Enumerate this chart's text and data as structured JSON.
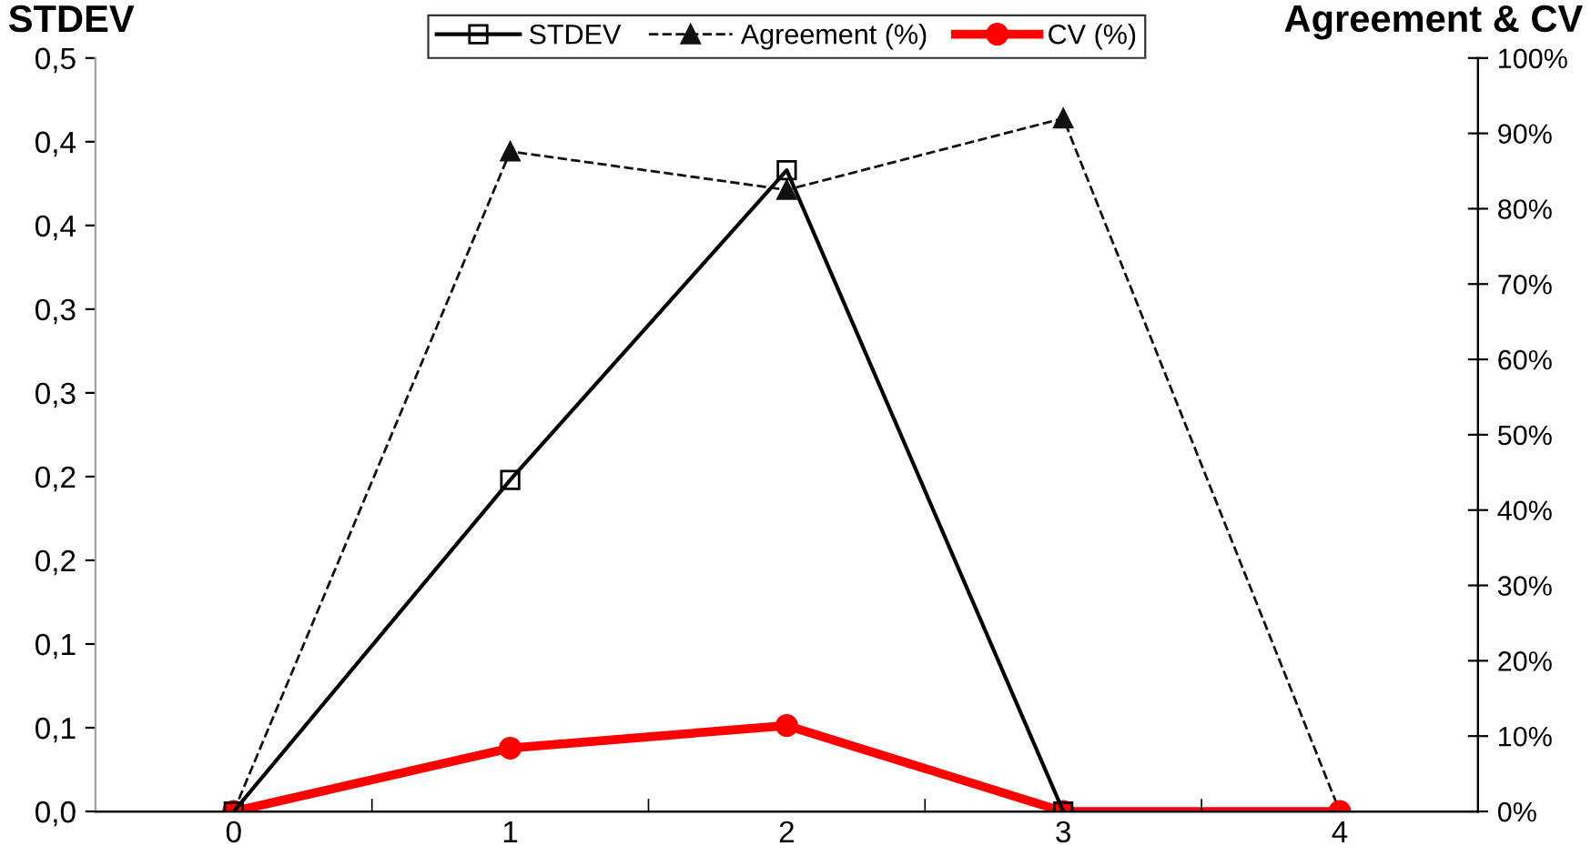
{
  "chart_data": {
    "type": "line",
    "ylabel": "STDEV",
    "y2label": "Agreement & CV",
    "categories": [
      "0",
      "1",
      "2",
      "3",
      "4"
    ],
    "series": [
      {
        "name": "STDEV",
        "color": "#000000",
        "values": [
          0,
          0.198,
          0.383,
          0,
          null
        ],
        "marker": "square",
        "line_style": "solid"
      },
      {
        "name": "Agreement (%)",
        "color": "#111111",
        "values": [
          0,
          87.6,
          82.5,
          92,
          0
        ],
        "marker": "triangle",
        "line_style": "dashed",
        "axis": "y2"
      },
      {
        "name": "CV (%)",
        "color": "#ff0000",
        "values": [
          0,
          8.4,
          11.4,
          0,
          0
        ],
        "marker": "circle",
        "line_style": "solid",
        "axis": "y2"
      }
    ],
    "ylim": [
      0,
      0.45
    ],
    "yticks": [
      {
        "value": 0,
        "label": "0,0"
      },
      {
        "value": 0.05,
        "label": "0,1"
      },
      {
        "value": 0.1,
        "label": "0,1"
      },
      {
        "value": 0.15,
        "label": "0,2"
      },
      {
        "value": 0.2,
        "label": "0,2"
      },
      {
        "value": 0.25,
        "label": "0,3"
      },
      {
        "value": 0.3,
        "label": "0,3"
      },
      {
        "value": 0.35,
        "label": "0,4"
      },
      {
        "value": 0.4,
        "label": "0,4"
      },
      {
        "value": 0.45,
        "label": "0,5"
      }
    ],
    "y2lim": [
      0,
      100
    ],
    "y2ticks": [
      {
        "value": 0,
        "label": "0%"
      },
      {
        "value": 10,
        "label": "10%"
      },
      {
        "value": 20,
        "label": "20%"
      },
      {
        "value": 30,
        "label": "30%"
      },
      {
        "value": 40,
        "label": "40%"
      },
      {
        "value": 50,
        "label": "50%"
      },
      {
        "value": 60,
        "label": "60%"
      },
      {
        "value": 70,
        "label": "70%"
      },
      {
        "value": 80,
        "label": "80%"
      },
      {
        "value": 90,
        "label": "90%"
      },
      {
        "value": 100,
        "label": "100%"
      }
    ],
    "grid": false,
    "legend": "top"
  }
}
